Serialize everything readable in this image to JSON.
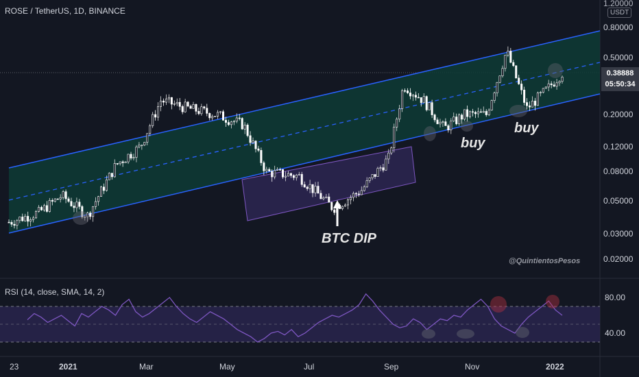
{
  "header": {
    "title": "ROSE / TetherUS, 1D, BINANCE",
    "currency_badge": "USDT"
  },
  "price_label": {
    "price": "0.38888",
    "countdown": "05:50:34"
  },
  "watermark": "@QuintientosPesos",
  "annotations": {
    "buy_1": "buy",
    "buy_2": "buy",
    "btc_dip": "BTC DIP"
  },
  "rsi_header": "RSI (14, close, SMA, 14, 2)",
  "colors": {
    "background": "#131722",
    "channel_line": "#2962ff",
    "channel_fill": "#0d3a33",
    "dip_box": "#7e57c2",
    "rsi_line": "#7e57c2",
    "rsi_band": "#2a2550"
  },
  "chart_data": [
    {
      "type": "candlestick",
      "title": "ROSE / TetherUS, 1D, BINANCE",
      "y_scale": "log",
      "y_ticks": [
        "1.20000",
        "0.80000",
        "0.50000",
        "0.38888",
        "0.20000",
        "0.12000",
        "0.08000",
        "0.05000",
        "0.03000",
        "0.02000"
      ],
      "y_tick_values": [
        1.2,
        0.8,
        0.5,
        0.2,
        0.12,
        0.08,
        0.05,
        0.03,
        0.02
      ],
      "x_ticks": [
        "23",
        "2021",
        "Mar",
        "May",
        "Jul",
        "Sep",
        "Nov",
        "2022"
      ],
      "last_price": 0.38888,
      "approx_closes": [
        {
          "x": "2020-11-23",
          "y": 0.036
        },
        {
          "x": "2020-12-15",
          "y": 0.042
        },
        {
          "x": "2021-01-01",
          "y": 0.055
        },
        {
          "x": "2021-01-20",
          "y": 0.04
        },
        {
          "x": "2021-02-10",
          "y": 0.09
        },
        {
          "x": "2021-02-28",
          "y": 0.12
        },
        {
          "x": "2021-03-15",
          "y": 0.25
        },
        {
          "x": "2021-04-05",
          "y": 0.22
        },
        {
          "x": "2021-04-25",
          "y": 0.2
        },
        {
          "x": "2021-05-15",
          "y": 0.17
        },
        {
          "x": "2021-06-01",
          "y": 0.08
        },
        {
          "x": "2021-06-25",
          "y": 0.075
        },
        {
          "x": "2021-07-20",
          "y": 0.045
        },
        {
          "x": "2021-08-10",
          "y": 0.06
        },
        {
          "x": "2021-08-30",
          "y": 0.1
        },
        {
          "x": "2021-09-10",
          "y": 0.32
        },
        {
          "x": "2021-09-25",
          "y": 0.25
        },
        {
          "x": "2021-10-10",
          "y": 0.16
        },
        {
          "x": "2021-10-25",
          "y": 0.2
        },
        {
          "x": "2021-11-10",
          "y": 0.2
        },
        {
          "x": "2021-11-25",
          "y": 0.55
        },
        {
          "x": "2021-12-10",
          "y": 0.22
        },
        {
          "x": "2021-12-25",
          "y": 0.3
        },
        {
          "x": "2022-01-05",
          "y": 0.39
        }
      ],
      "overlays": [
        "ascending parallel channel",
        "channel midline (dashed)",
        "BTC DIP rectangle"
      ]
    },
    {
      "type": "line",
      "title": "RSI (14, close, SMA, 14, 2)",
      "y_ticks": [
        "80.00",
        "40.00"
      ],
      "y_tick_values": [
        80,
        40
      ],
      "bands": [
        70,
        50,
        30
      ],
      "series": [
        {
          "values": [
            55,
            62,
            58,
            52,
            56,
            60,
            54,
            48,
            62,
            58,
            64,
            70,
            66,
            60,
            72,
            78,
            64,
            58,
            62,
            68,
            74,
            80,
            70,
            62,
            56,
            52,
            58,
            64,
            60,
            56,
            50,
            44,
            40,
            36,
            30,
            34,
            40,
            42,
            38,
            44,
            36,
            40,
            46,
            52,
            56,
            60,
            58,
            62,
            66,
            72,
            84,
            76,
            66,
            58,
            50,
            46,
            48,
            56,
            52,
            44,
            50,
            56,
            54,
            60,
            58,
            66,
            72,
            78,
            70,
            56,
            48,
            44,
            40,
            50,
            58,
            64,
            70,
            76,
            66,
            60
          ]
        }
      ]
    }
  ]
}
